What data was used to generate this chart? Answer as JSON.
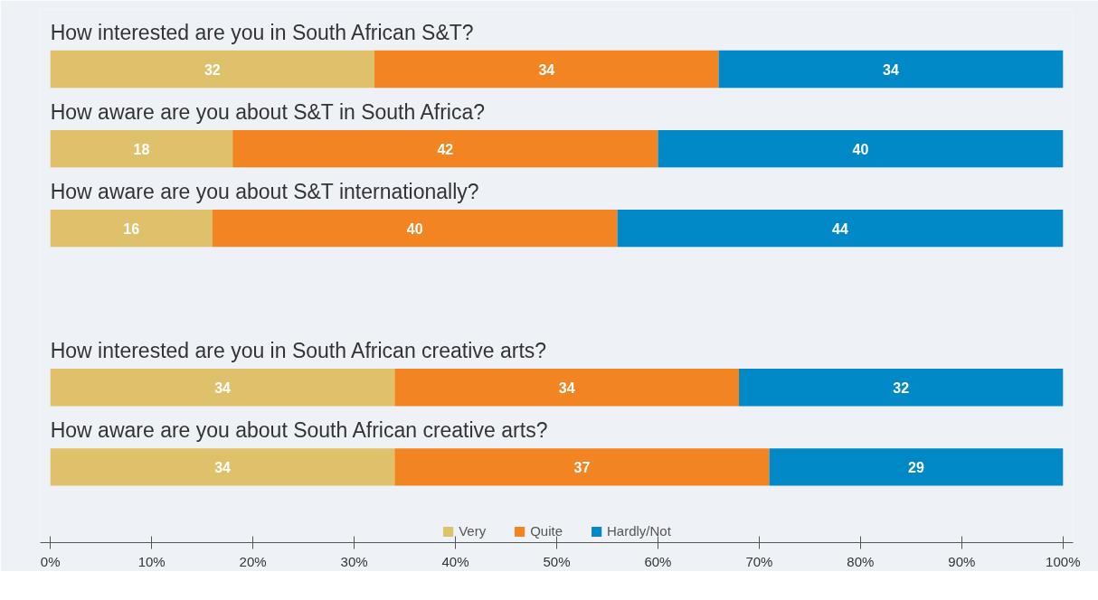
{
  "chart_data": {
    "type": "bar",
    "orientation": "horizontal",
    "stacked": true,
    "data_labels": true,
    "legend": "bottom",
    "categories": [
      "How interested are you in South African S&T?",
      "How aware are you about S&T in South Africa?",
      "How aware are you about S&T internationally?",
      null,
      "How interested are you in South African creative arts?",
      "How aware are you about South African creative arts?"
    ],
    "series": [
      {
        "name": "Very",
        "color": "#dfc06b",
        "values": [
          32,
          18,
          16,
          null,
          34,
          34
        ]
      },
      {
        "name": "Quite",
        "color": "#f28422",
        "values": [
          34,
          42,
          40,
          null,
          34,
          37
        ]
      },
      {
        "name": "Hardly/Not",
        "color": "#0088c7",
        "values": [
          34,
          40,
          44,
          null,
          32,
          29
        ]
      }
    ],
    "xlim": [
      -1,
      101
    ],
    "xticks": [
      {
        "value": 0,
        "label": "0%"
      },
      {
        "value": 10,
        "label": "10%"
      },
      {
        "value": 20,
        "label": "20%"
      },
      {
        "value": 30,
        "label": "30%"
      },
      {
        "value": 40,
        "label": "40%"
      },
      {
        "value": 50,
        "label": "50%"
      },
      {
        "value": 60,
        "label": "60%"
      },
      {
        "value": 70,
        "label": "70%"
      },
      {
        "value": 80,
        "label": "80%"
      },
      {
        "value": 90,
        "label": "90%"
      },
      {
        "value": 100,
        "label": "100%"
      }
    ]
  }
}
